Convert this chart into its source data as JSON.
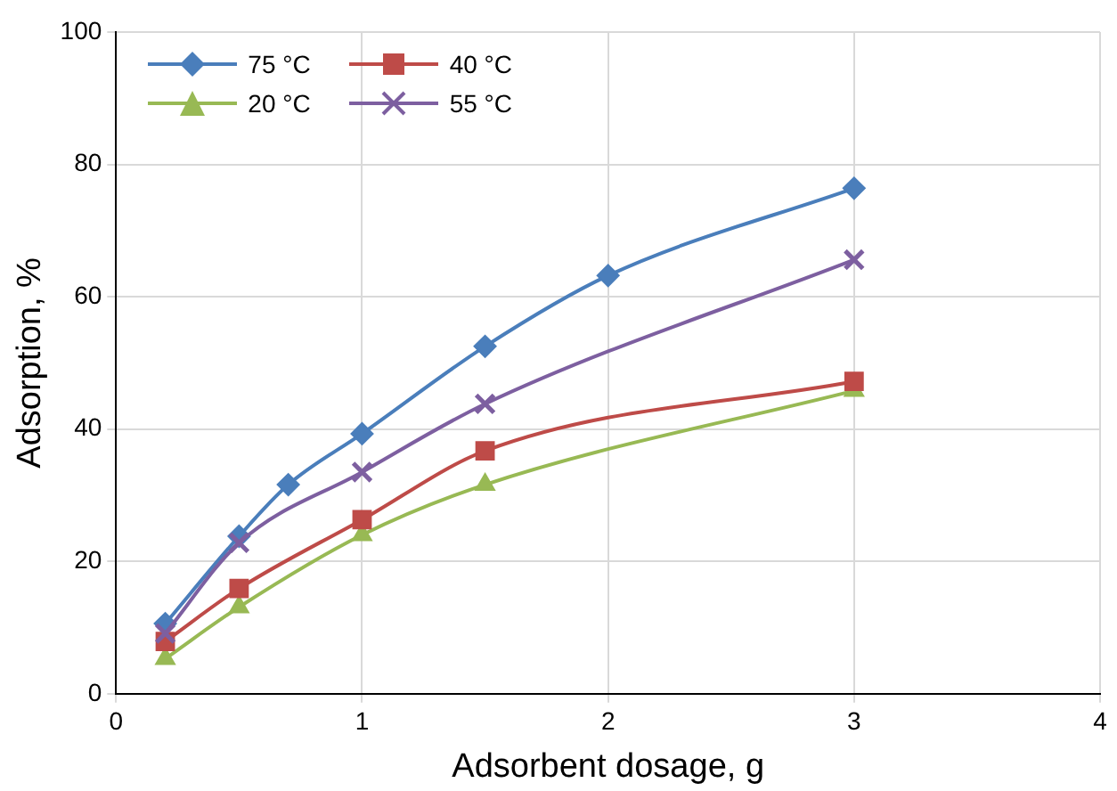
{
  "chart_data": {
    "type": "line",
    "xlabel": "Adsorbent dosage, g",
    "ylabel": "Adsorption, %",
    "xlim": [
      0,
      4
    ],
    "xticks": [
      0,
      1,
      2,
      3,
      4
    ],
    "ylim": [
      0,
      100
    ],
    "yticks": [
      0,
      20,
      40,
      60,
      80,
      100
    ],
    "grid": true,
    "legend": "top left",
    "line_style": "solid",
    "series": [
      {
        "name": "75 °C",
        "color": "#4a7ebb",
        "marker": "diamond",
        "x": [
          0.2,
          0.5,
          0.7,
          1,
          1.5,
          2,
          3
        ],
        "values": [
          10.6,
          23.8,
          31.6,
          39.3,
          52.5,
          63.2,
          76.4
        ]
      },
      {
        "name": "40 °C",
        "color": "#be4b48",
        "marker": "square",
        "x": [
          0.2,
          0.5,
          1,
          1.5,
          3
        ],
        "values": [
          7.9,
          15.9,
          26.3,
          36.7,
          47.2
        ]
      },
      {
        "name": "20 °C",
        "color": "#98b954",
        "marker": "triangle",
        "x": [
          0.2,
          0.5,
          1,
          1.5,
          3
        ],
        "values": [
          5.3,
          13.1,
          24.0,
          31.6,
          45.8
        ]
      },
      {
        "name": "55 °C",
        "color": "#7d5fa0",
        "marker": "cross",
        "x": [
          0.2,
          0.5,
          1,
          1.5,
          3
        ],
        "values": [
          9.1,
          22.8,
          33.5,
          43.8,
          65.6
        ]
      }
    ]
  }
}
